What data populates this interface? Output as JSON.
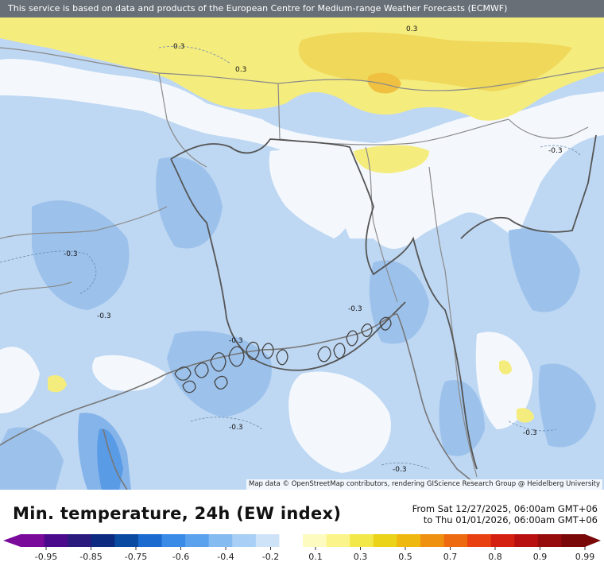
{
  "header": {
    "notice": "This service is based on data and products of the European Centre for Medium-range Weather Forecasts (ECMWF)"
  },
  "attribution": "Map data © OpenStreetMap contributors, rendering GIScience Research Group @ Heidelberg University",
  "title": "Min. temperature, 24h (EW index)",
  "period": {
    "from": "From Sat 12/27/2025, 06:00am GMT+06",
    "to": "to Thu 01/01/2026, 06:00am GMT+06"
  },
  "contour_labels": [
    "0.3",
    "0.3",
    "0.3",
    "-0.3",
    "-0.3",
    "-0.3",
    "-0.3",
    "-0.3",
    "-0.3",
    "-0.3",
    "-0.3"
  ],
  "legend": {
    "ticks": [
      "-0.95",
      "-0.85",
      "-0.75",
      "-0.6",
      "-0.4",
      "-0.2",
      "0.1",
      "0.3",
      "0.5",
      "0.7",
      "0.8",
      "0.9",
      "0.99"
    ],
    "colors": [
      "#7a0a9a",
      "#4b0a8c",
      "#2a1a7e",
      "#0b2a80",
      "#0a4aa0",
      "#1a6ad0",
      "#3a8ae8",
      "#5aa2ee",
      "#84bcf2",
      "#a8d0f6",
      "#cfe3f8",
      "#ffffff",
      "#fdfbc0",
      "#fbf48a",
      "#f3e84a",
      "#ebd31a",
      "#efb810",
      "#f09010",
      "#ee6a10",
      "#e84010",
      "#d42010",
      "#b81010",
      "#960c0c",
      "#7a0808"
    ]
  }
}
